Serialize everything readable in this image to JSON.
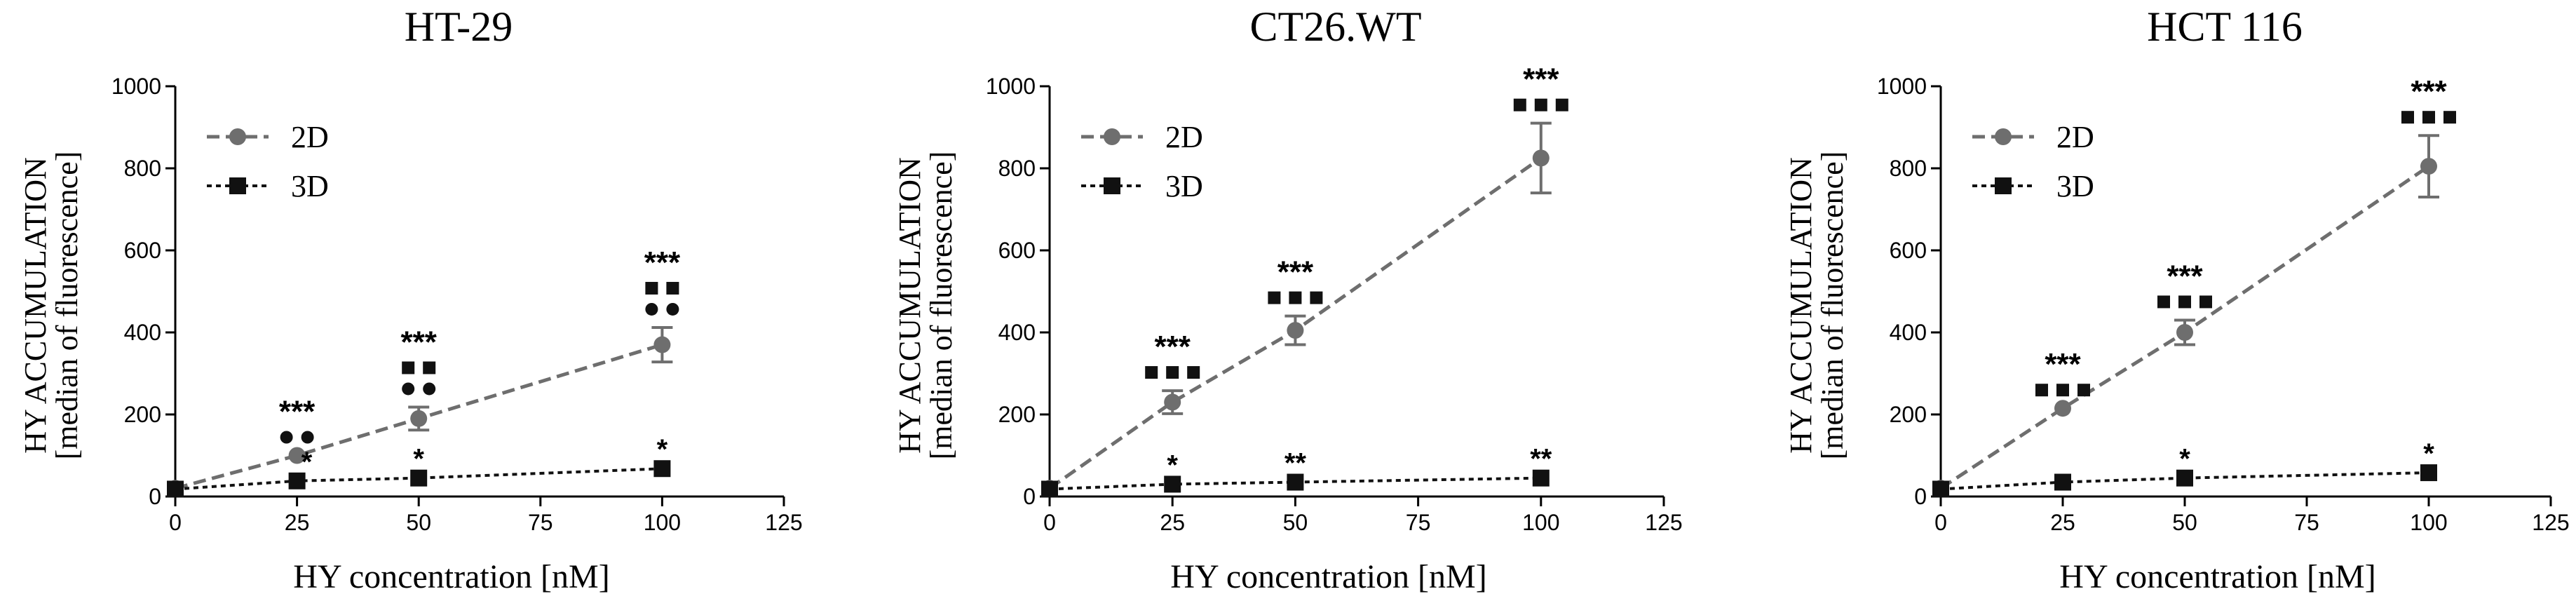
{
  "colors": {
    "series_2d": "#6e6e6e",
    "series_3d": "#111111",
    "axis": "#000000",
    "text": "#000000"
  },
  "chart_data": [
    {
      "type": "line",
      "title": "HT-29",
      "xlabel": "HY concentration [nM]",
      "ylabel": "HY ACCUMULATION",
      "ylabel2": "[median of fluorescence]",
      "xlim": [
        0,
        125
      ],
      "ylim": [
        0,
        1000
      ],
      "xticks": [
        "0",
        "25",
        "50",
        "75",
        "100",
        "125"
      ],
      "yticks": [
        "0",
        "200",
        "400",
        "600",
        "800",
        "1000"
      ],
      "legend_position": "top-left",
      "x": [
        0,
        25,
        50,
        100
      ],
      "series": [
        {
          "name": "2D",
          "marker": "circle",
          "values": [
            20,
            100,
            190,
            370
          ],
          "errors": [
            0,
            0,
            28,
            42
          ]
        },
        {
          "name": "3D",
          "marker": "square",
          "values": [
            18,
            38,
            45,
            68
          ],
          "errors": [
            0,
            0,
            0,
            0
          ]
        }
      ],
      "annotations": [
        {
          "x": 25,
          "stars": "***",
          "marks": [
            "circle",
            "circle"
          ],
          "low_stars": "*"
        },
        {
          "x": 50,
          "stars": "***",
          "marks": [
            "circle",
            "circle"
          ],
          "mark_rows": [
            [
              "square",
              "square"
            ]
          ],
          "low_stars": "*"
        },
        {
          "x": 100,
          "stars": "***",
          "marks": [
            "circle",
            "circle"
          ],
          "mark_rows": [
            [
              "square",
              "square"
            ]
          ],
          "low_stars": "*"
        }
      ]
    },
    {
      "type": "line",
      "title": "CT26.WT",
      "xlabel": "HY concentration [nM]",
      "ylabel": "HY ACCUMULATION",
      "ylabel2": "[median of fluorescence]",
      "xlim": [
        0,
        125
      ],
      "ylim": [
        0,
        1000
      ],
      "xticks": [
        "0",
        "25",
        "50",
        "75",
        "100",
        "125"
      ],
      "yticks": [
        "0",
        "200",
        "400",
        "600",
        "800",
        "1000"
      ],
      "legend_position": "top-left",
      "x": [
        0,
        25,
        50,
        100
      ],
      "series": [
        {
          "name": "2D",
          "marker": "circle",
          "values": [
            20,
            230,
            405,
            825
          ],
          "errors": [
            0,
            28,
            35,
            85
          ]
        },
        {
          "name": "3D",
          "marker": "square",
          "values": [
            18,
            30,
            35,
            45
          ],
          "errors": [
            0,
            0,
            0,
            0
          ]
        }
      ],
      "annotations": [
        {
          "x": 25,
          "stars": "***",
          "marks": [
            "square",
            "square",
            "square"
          ],
          "low_stars": "*"
        },
        {
          "x": 50,
          "stars": "***",
          "marks": [
            "square",
            "square",
            "square"
          ],
          "low_stars": "**"
        },
        {
          "x": 100,
          "stars": "***",
          "marks": [
            "square",
            "square",
            "square"
          ],
          "low_stars": "**"
        }
      ]
    },
    {
      "type": "line",
      "title": "HCT 116",
      "xlabel": "HY concentration [nM]",
      "ylabel": "HY ACCUMULATION",
      "ylabel2": "[median of fluorescence]",
      "xlim": [
        0,
        125
      ],
      "ylim": [
        0,
        1000
      ],
      "xticks": [
        "0",
        "25",
        "50",
        "75",
        "100",
        "125"
      ],
      "yticks": [
        "0",
        "200",
        "400",
        "600",
        "800",
        "1000"
      ],
      "legend_position": "top-left",
      "x": [
        0,
        25,
        50,
        100
      ],
      "series": [
        {
          "name": "2D",
          "marker": "circle",
          "values": [
            20,
            215,
            400,
            805
          ],
          "errors": [
            0,
            0,
            30,
            75
          ]
        },
        {
          "name": "3D",
          "marker": "square",
          "values": [
            18,
            35,
            45,
            58
          ],
          "errors": [
            0,
            0,
            0,
            0
          ]
        }
      ],
      "annotations": [
        {
          "x": 25,
          "stars": "***",
          "marks": [
            "square",
            "square",
            "square"
          ],
          "low_stars": ""
        },
        {
          "x": 50,
          "stars": "***",
          "marks": [
            "square",
            "square",
            "square"
          ],
          "low_stars": "*"
        },
        {
          "x": 100,
          "stars": "***",
          "marks": [
            "square",
            "square",
            "square"
          ],
          "low_stars": "*"
        }
      ]
    }
  ]
}
